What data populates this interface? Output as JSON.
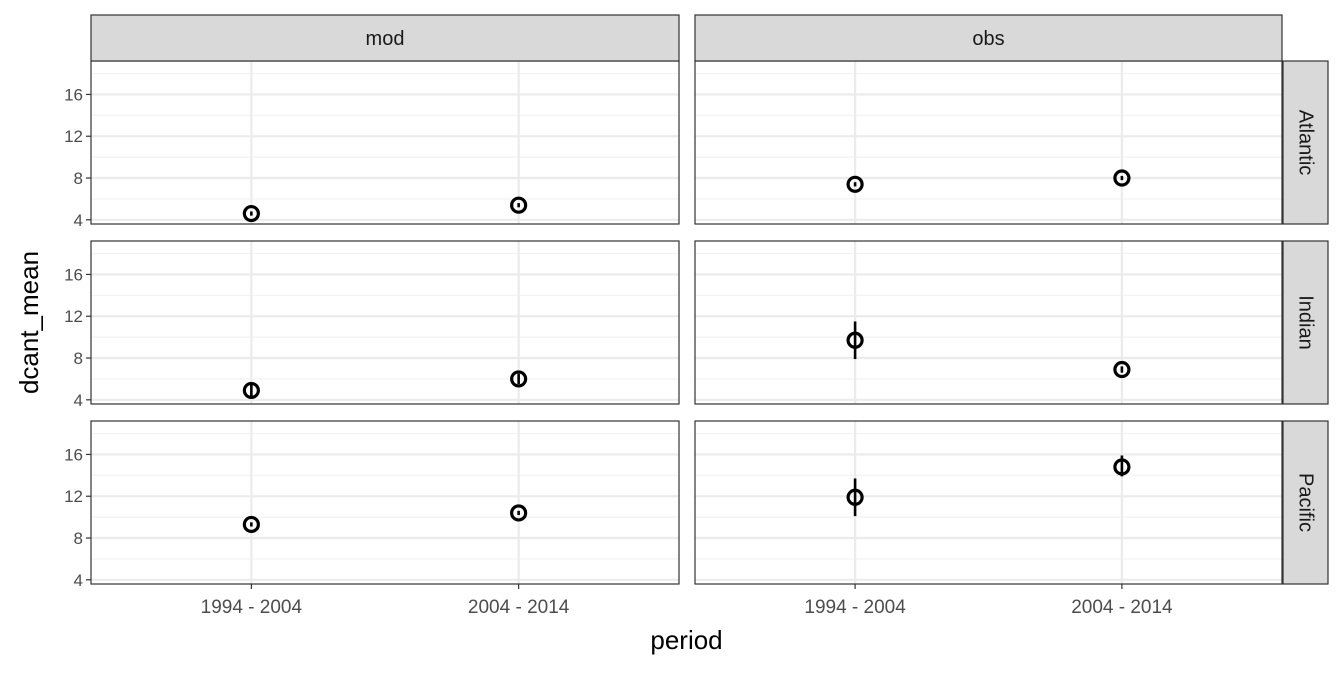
{
  "chart_data": {
    "type": "scatter",
    "title": "",
    "xlabel": "period",
    "ylabel": "dcant_mean",
    "categories": [
      "1994 - 2004",
      "2004 - 2014"
    ],
    "ylim": [
      3.6,
      19.2
    ],
    "yticks": [
      4,
      8,
      12,
      16
    ],
    "grid": true,
    "facet_columns": [
      "mod",
      "obs"
    ],
    "facet_rows": [
      "Atlantic",
      "Indian",
      "Pacific"
    ],
    "panels": [
      {
        "col": "mod",
        "row": "Atlantic",
        "points": [
          {
            "x": "1994 - 2004",
            "y": 4.6,
            "ymin": 4.4,
            "ymax": 4.8
          },
          {
            "x": "2004 - 2014",
            "y": 5.4,
            "ymin": 5.2,
            "ymax": 5.6
          }
        ]
      },
      {
        "col": "obs",
        "row": "Atlantic",
        "points": [
          {
            "x": "1994 - 2004",
            "y": 7.4,
            "ymin": 7.2,
            "ymax": 7.6
          },
          {
            "x": "2004 - 2014",
            "y": 8.0,
            "ymin": 7.8,
            "ymax": 8.2
          }
        ]
      },
      {
        "col": "mod",
        "row": "Indian",
        "points": [
          {
            "x": "1994 - 2004",
            "y": 4.9,
            "ymin": 4.2,
            "ymax": 5.6
          },
          {
            "x": "2004 - 2014",
            "y": 6.0,
            "ymin": 5.5,
            "ymax": 6.5
          }
        ]
      },
      {
        "col": "obs",
        "row": "Indian",
        "points": [
          {
            "x": "1994 - 2004",
            "y": 9.7,
            "ymin": 7.9,
            "ymax": 11.5
          },
          {
            "x": "2004 - 2014",
            "y": 6.9,
            "ymin": 6.6,
            "ymax": 7.2
          }
        ]
      },
      {
        "col": "mod",
        "row": "Pacific",
        "points": [
          {
            "x": "1994 - 2004",
            "y": 9.3,
            "ymin": 9.1,
            "ymax": 9.5
          },
          {
            "x": "2004 - 2014",
            "y": 10.4,
            "ymin": 10.2,
            "ymax": 10.6
          }
        ]
      },
      {
        "col": "obs",
        "row": "Pacific",
        "points": [
          {
            "x": "1994 - 2004",
            "y": 11.9,
            "ymin": 10.1,
            "ymax": 13.7
          },
          {
            "x": "2004 - 2014",
            "y": 14.8,
            "ymin": 13.9,
            "ymax": 15.9
          }
        ]
      }
    ]
  }
}
